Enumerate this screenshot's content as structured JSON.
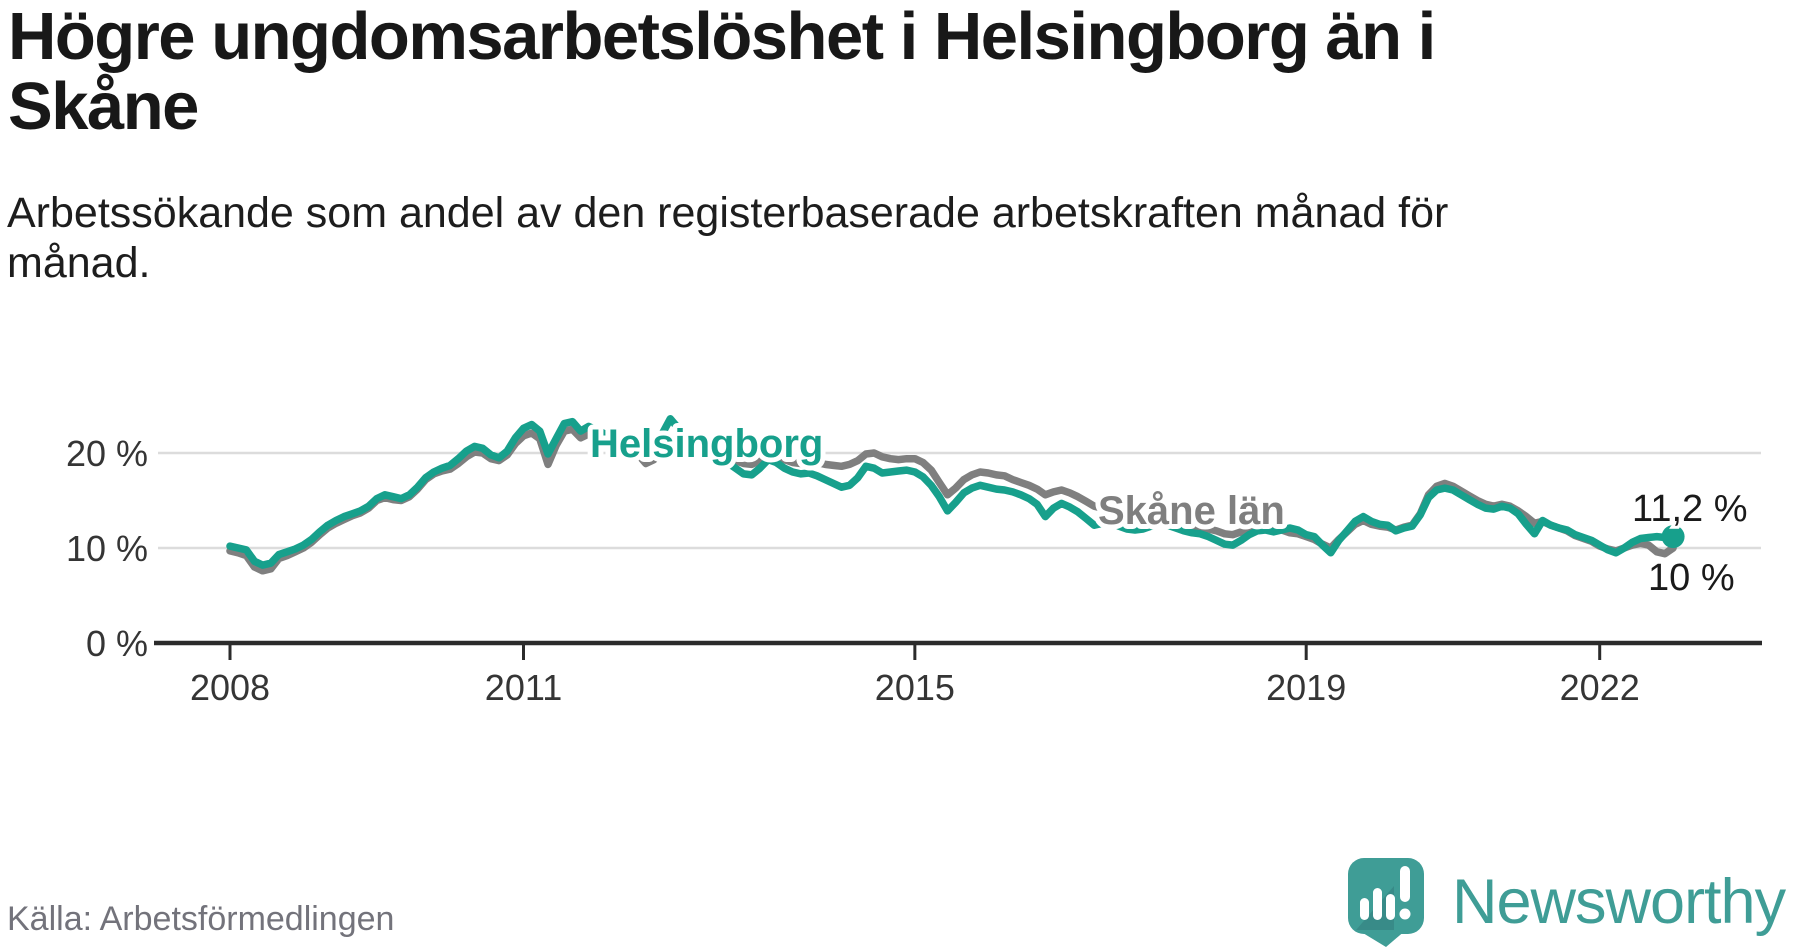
{
  "title": "Högre ungdomsarbetslöshet i Helsingborg än i\nSkåne",
  "subtitle": "Arbetssökande som andel av den registerbaserade arbetskraften månad för\nmånad.",
  "source": "Källa: Arbetsförmedlingen",
  "logo": {
    "text": "Newsworthy"
  },
  "colors": {
    "helsingborg": "#17a08c",
    "skane": "#7f7f7f",
    "axis": "#2b2b2b",
    "grid": "#dcdcdc",
    "tick_text": "#353535",
    "value_text": "#1a1a1a",
    "source_text": "#73737b",
    "logo": "#3f9d96"
  },
  "chart_data": {
    "type": "line",
    "title": "Högre ungdomsarbetslöshet i Helsingborg än i Skåne",
    "subtitle": "Arbetssökande som andel av den registerbaserade arbetskraften månad för månad.",
    "x_unit": "month",
    "x_start": "2008-01",
    "x_end": "2022-10",
    "grid": true,
    "legend_position": "inline-labels",
    "ylim": [
      0,
      25
    ],
    "x_axis": {
      "ticks": [
        2008,
        2011,
        2015,
        2019,
        2022
      ]
    },
    "y_axis": {
      "ticks": [
        {
          "value": 0,
          "label": "0 %"
        },
        {
          "value": 10,
          "label": "10 %"
        },
        {
          "value": 20,
          "label": "20 %"
        }
      ]
    },
    "series": [
      {
        "id": "helsingborg",
        "name": "Helsingborg",
        "color": "#17a08c",
        "end_label": "11,2 %",
        "end_value": 11.2,
        "end_dot": true,
        "values": [
          10.2,
          10.0,
          9.8,
          8.6,
          8.2,
          8.4,
          9.3,
          9.6,
          9.9,
          10.3,
          10.9,
          11.7,
          12.4,
          12.9,
          13.3,
          13.6,
          13.9,
          14.4,
          15.2,
          15.6,
          15.4,
          15.2,
          15.6,
          16.4,
          17.4,
          18.0,
          18.4,
          18.7,
          19.4,
          20.2,
          20.7,
          20.5,
          19.8,
          19.5,
          20.2,
          21.6,
          22.6,
          23.0,
          22.3,
          19.9,
          21.5,
          23.1,
          23.3,
          22.3,
          22.8,
          22.4,
          22.0,
          21.8,
          21.5,
          21.0,
          20.4,
          19.8,
          20.3,
          22.0,
          23.6,
          22.6,
          21.6,
          20.9,
          20.5,
          20.6,
          19.6,
          19.0,
          18.4,
          17.8,
          17.7,
          18.4,
          19.3,
          19.0,
          18.4,
          18.0,
          17.8,
          17.9,
          17.6,
          17.2,
          16.8,
          16.4,
          16.6,
          17.4,
          18.6,
          18.4,
          17.9,
          18.0,
          18.1,
          18.2,
          18.0,
          17.5,
          16.6,
          15.4,
          13.9,
          14.8,
          15.8,
          16.3,
          16.6,
          16.4,
          16.2,
          16.1,
          15.9,
          15.6,
          15.2,
          14.6,
          13.3,
          14.2,
          14.7,
          14.3,
          13.8,
          13.1,
          12.4,
          12.6,
          12.8,
          12.3,
          12.0,
          11.9,
          12.0,
          12.3,
          12.6,
          12.4,
          12.1,
          11.8,
          11.6,
          11.5,
          11.2,
          10.8,
          10.4,
          10.3,
          10.8,
          11.4,
          11.8,
          11.9,
          11.7,
          11.9,
          12.1,
          11.9,
          11.4,
          11.2,
          10.3,
          9.5,
          10.8,
          11.8,
          12.8,
          13.3,
          12.8,
          12.5,
          12.4,
          11.8,
          12.1,
          12.3,
          13.5,
          15.3,
          16.1,
          16.3,
          16.1,
          15.6,
          15.1,
          14.6,
          14.2,
          14.1,
          14.4,
          14.2,
          13.6,
          12.5,
          11.5,
          12.9,
          12.4,
          12.1,
          11.9,
          11.4,
          11.1,
          10.8,
          10.3,
          9.8,
          9.5,
          10.0,
          10.6,
          11.0,
          11.1,
          11.2,
          11.1,
          11.2
        ]
      },
      {
        "id": "skane",
        "name": "Skåne län",
        "color": "#7f7f7f",
        "end_label": "10 %",
        "end_value": 10.0,
        "end_dot": false,
        "values": [
          9.7,
          9.5,
          9.2,
          8.0,
          7.6,
          7.8,
          8.9,
          9.2,
          9.6,
          10.0,
          10.6,
          11.4,
          12.1,
          12.6,
          13.0,
          13.4,
          13.7,
          14.2,
          15.0,
          15.3,
          15.1,
          15.0,
          15.4,
          16.2,
          17.2,
          17.8,
          18.1,
          18.3,
          18.9,
          19.6,
          20.1,
          20.0,
          19.4,
          19.2,
          19.8,
          21.0,
          21.8,
          22.1,
          21.5,
          18.8,
          20.8,
          22.3,
          22.5,
          21.6,
          22.0,
          21.7,
          21.4,
          21.3,
          21.0,
          20.6,
          19.9,
          18.9,
          19.3,
          20.6,
          21.6,
          21.0,
          20.6,
          20.2,
          20.0,
          20.2,
          20.0,
          19.6,
          19.2,
          18.9,
          18.8,
          19.2,
          19.9,
          19.7,
          19.3,
          19.0,
          18.9,
          19.1,
          19.0,
          18.8,
          18.7,
          18.6,
          18.8,
          19.2,
          19.9,
          20.0,
          19.6,
          19.4,
          19.3,
          19.4,
          19.4,
          19.0,
          18.2,
          16.9,
          15.6,
          16.3,
          17.2,
          17.7,
          18.0,
          17.9,
          17.7,
          17.6,
          17.2,
          16.9,
          16.6,
          16.2,
          15.6,
          15.9,
          16.1,
          15.8,
          15.4,
          14.9,
          14.4,
          14.2,
          14.3,
          14.0,
          13.7,
          13.5,
          13.4,
          13.6,
          13.8,
          13.5,
          13.1,
          12.7,
          12.3,
          12.0,
          12.0,
          11.8,
          11.5,
          11.4,
          11.7,
          12.0,
          12.3,
          12.2,
          12.0,
          11.9,
          11.6,
          11.5,
          11.2,
          10.9,
          10.4,
          10.0,
          10.9,
          11.7,
          12.5,
          12.9,
          12.5,
          12.3,
          12.2,
          11.9,
          12.2,
          12.4,
          13.6,
          15.6,
          16.5,
          16.8,
          16.5,
          16.0,
          15.5,
          15.0,
          14.6,
          14.4,
          14.6,
          14.4,
          13.9,
          13.3,
          12.6,
          12.8,
          12.4,
          12.1,
          11.8,
          11.3,
          11.0,
          10.7,
          10.2,
          9.9,
          9.7,
          10.0,
          10.3,
          10.5,
          10.3,
          9.6,
          9.4,
          10.0
        ]
      }
    ]
  }
}
